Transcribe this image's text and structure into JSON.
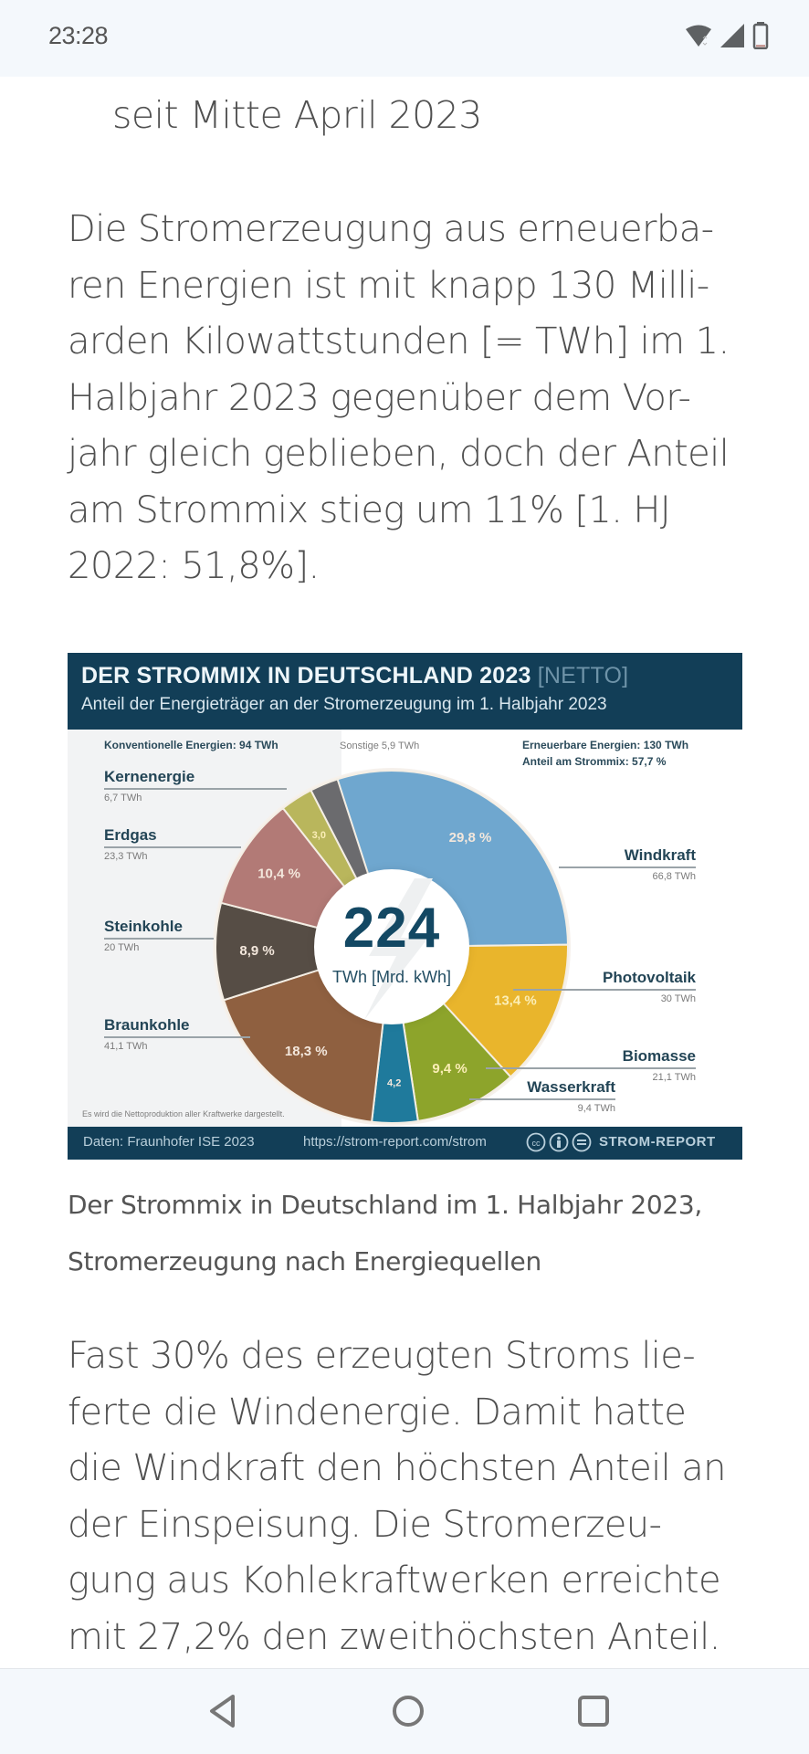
{
  "status_bar": {
    "time": "23:28",
    "icons": [
      "wifi-icon",
      "cellular-signal-icon",
      "battery-icon"
    ]
  },
  "article": {
    "subline": "seit Mitte April 2023",
    "paragraph_1": "Die Stromerzeugung aus erneuerba­ren Energien ist mit knapp 130 Milli­arden Kilowattstunden [= TWh] im 1. Halbjahr 2023 gegenüber dem Vor­jahr gleich geblieben, doch der Anteil am Strommix stieg um 11% [1. HJ 2022: 51,8%].",
    "paragraph_1_lines": [
      "Die Stromerzeugung aus erneuerba-",
      "ren Energien ist mit knapp 130 Milli-",
      "arden Kilowattstunden [= TWh] im 1.",
      "Halbjahr 2023 gegenüber dem Vor-",
      "jahr gleich geblieben, doch der Anteil",
      "am Strommix stieg um 11% [1. HJ",
      "2022: 51,8%]."
    ],
    "caption_lines": [
      "Der Strommix in Deutschland im 1. Halbjahr 2023,",
      "Stromerzeugung nach Energiequellen"
    ],
    "paragraph_2_lines": [
      "Fast 30% des erzeugten Stroms lie-",
      "ferte die Windenergie. Damit hatte",
      "die Windkraft den höchsten Anteil an",
      "der Einspeisung. Die Stromerzeu-",
      "gung aus Kohlekraftwerken erreichte",
      "mit 27,2% den zweithöchsten Anteil."
    ]
  },
  "infographic": {
    "title": "DER STROMMIX IN DEUTSCHLAND 2023",
    "title_suffix": "[NETTO]",
    "subtitle": "Anteil der Energieträger an der Stromerzeugung im 1. Halbjahr 2023",
    "conventional_note": "Konventionelle Energien: 94 TWh",
    "other_note": "Sonstige 5,9 TWh",
    "renewable_note_1": "Erneuerbare Energien: 130 TWh",
    "renewable_note_2": "Anteil am Strommix: 57,7 %",
    "center_value": "224",
    "center_unit": "TWh [Mrd. kWh]",
    "footnote": "Es wird die Nettoproduktion aller Kraftwerke dargestellt.",
    "source": "Daten: Fraunhofer ISE 2023",
    "url": "https://strom-report.com/strom",
    "brand": "STROM-REPORT",
    "license_icons": [
      "cc-icon",
      "by-icon",
      "nd-icon"
    ]
  },
  "chart_data": {
    "type": "pie",
    "variant": "donut",
    "title": "DER STROMMIX IN DEUTSCHLAND 2023 [NETTO]",
    "subtitle": "Anteil der Energieträger an der Stromerzeugung im 1. Halbjahr 2023",
    "total": 224,
    "unit": "TWh",
    "slices": [
      {
        "name": "Windkraft",
        "twh": "66,8 TWh",
        "percent": 29.8,
        "percent_label": "29,8 %",
        "color": "#6fa7cf"
      },
      {
        "name": "Photovoltaik",
        "twh": "30 TWh",
        "percent": 13.4,
        "percent_label": "13,4 %",
        "color": "#e9b52c"
      },
      {
        "name": "Biomasse",
        "twh": "21,1 TWh",
        "percent": 9.4,
        "percent_label": "9,4 %",
        "color": "#8da42b"
      },
      {
        "name": "Wasserkraft",
        "twh": "9,4 TWh",
        "percent": 4.2,
        "percent_label": "4,2",
        "color": "#1f7a9c"
      },
      {
        "name": "Braunkohle",
        "twh": "41,1 TWh",
        "percent": 18.3,
        "percent_label": "18,3 %",
        "color": "#8f6040"
      },
      {
        "name": "Steinkohle",
        "twh": "20 TWh",
        "percent": 8.9,
        "percent_label": "8,9 %",
        "color": "#564d45"
      },
      {
        "name": "Erdgas",
        "twh": "23,3 TWh",
        "percent": 10.4,
        "percent_label": "10,4 %",
        "color": "#b27a76"
      },
      {
        "name": "Kernenergie",
        "twh": "6,7 TWh",
        "percent": 3.0,
        "percent_label": "3,0",
        "color": "#b9b65c"
      },
      {
        "name": "Sonstige",
        "twh": "5,9 TWh",
        "percent": 2.6,
        "percent_label": "",
        "color": "#6b6b6e"
      }
    ],
    "legend": "labels-outside"
  },
  "nav_bar": {
    "buttons": [
      "back-icon",
      "home-icon",
      "recents-icon"
    ]
  }
}
